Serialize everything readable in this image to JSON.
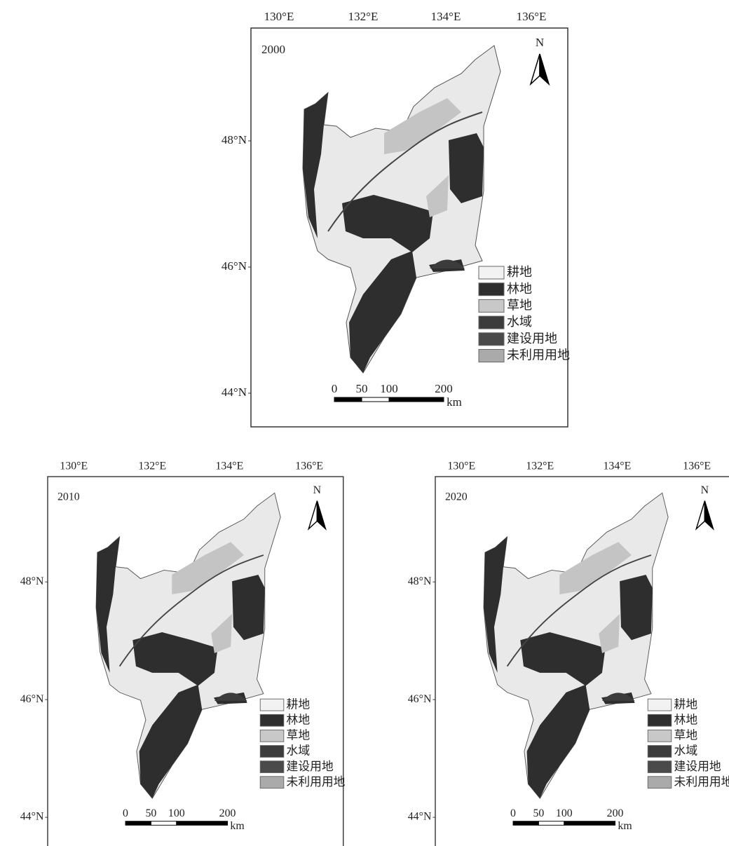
{
  "panels": [
    {
      "year": "2000"
    },
    {
      "year": "2010"
    },
    {
      "year": "2020"
    }
  ],
  "lon_labels": [
    "130°E",
    "132°E",
    "134°E",
    "136°E"
  ],
  "lat_labels": [
    "48°N",
    "46°N",
    "44°N"
  ],
  "north_label": "N",
  "legend": [
    {
      "name": "耕地",
      "color": "#f2f2f2"
    },
    {
      "name": "林地",
      "color": "#2e2e2e"
    },
    {
      "name": "草地",
      "color": "#c8c8c8"
    },
    {
      "name": "水域",
      "color": "#3c3c3c"
    },
    {
      "name": "建设用地",
      "color": "#4a4a4a"
    },
    {
      "name": "未利用用地",
      "color": "#aaaaaa"
    }
  ],
  "scale_bar": {
    "ticks": [
      0,
      50,
      100,
      200
    ],
    "unit": "km"
  }
}
